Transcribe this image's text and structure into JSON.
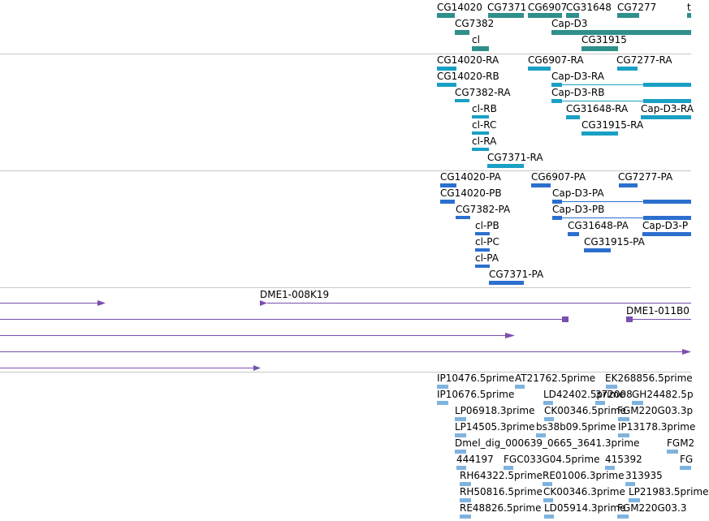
{
  "colors": {
    "gene": "#2f8f8a",
    "transcript": "#1aa0c4",
    "protein": "#2c6fcf",
    "clone": "#7a4fb0",
    "est": "#7fb3de",
    "divider": "#c8c8c8"
  },
  "tracks": [
    {
      "id": "genes",
      "color": "gene",
      "labels": [
        {
          "text": "CG14020"
        },
        {
          "text": "CG7371"
        },
        {
          "text": "CG6907"
        },
        {
          "text": "CG31648"
        },
        {
          "text": "CG7277"
        },
        {
          "text": "t"
        },
        {
          "text": "CG7382"
        },
        {
          "text": "Cap-D3"
        },
        {
          "text": "cl"
        },
        {
          "text": "CG31915"
        }
      ]
    },
    {
      "id": "transcripts",
      "color": "transcript",
      "labels": [
        {
          "text": "CG14020-RA"
        },
        {
          "text": "CG6907-RA"
        },
        {
          "text": "CG7277-RA"
        },
        {
          "text": "CG14020-RB"
        },
        {
          "text": "Cap-D3-RA"
        },
        {
          "text": "CG7382-RA"
        },
        {
          "text": "Cap-D3-RB"
        },
        {
          "text": "cl-RB"
        },
        {
          "text": "CG31648-RA"
        },
        {
          "text": "Cap-D3-RA"
        },
        {
          "text": "cl-RC"
        },
        {
          "text": "CG31915-RA"
        },
        {
          "text": "cl-RA"
        },
        {
          "text": "CG7371-RA"
        }
      ]
    },
    {
      "id": "proteins",
      "color": "protein",
      "labels": [
        {
          "text": "CG14020-PA"
        },
        {
          "text": "CG6907-PA"
        },
        {
          "text": "CG7277-PA"
        },
        {
          "text": "CG14020-PB"
        },
        {
          "text": "Cap-D3-PA"
        },
        {
          "text": "CG7382-PA"
        },
        {
          "text": "Cap-D3-PB"
        },
        {
          "text": "cl-PB"
        },
        {
          "text": "CG31648-PA"
        },
        {
          "text": "Cap-D3-P"
        },
        {
          "text": "cl-PC"
        },
        {
          "text": "CG31915-PA"
        },
        {
          "text": "cl-PA"
        },
        {
          "text": "CG7371-PA"
        }
      ]
    },
    {
      "id": "clones",
      "color": "clone",
      "labels": [
        {
          "text": "DME1-008K19"
        },
        {
          "text": "DME1-011B0"
        }
      ]
    },
    {
      "id": "ests",
      "color": "est",
      "labels": [
        {
          "text": "IP10476.5prime"
        },
        {
          "text": "AT21762.5prime"
        },
        {
          "text": "EK268856.5prime"
        },
        {
          "text": "IP10676.5prime"
        },
        {
          "text": "LD42402.5prime"
        },
        {
          "text": "372008"
        },
        {
          "text": "GH24482.5p"
        },
        {
          "text": "LP06918.3prime"
        },
        {
          "text": "CK00346.5prime"
        },
        {
          "text": "FGM220G03.3p"
        },
        {
          "text": "LP14505.3prime"
        },
        {
          "text": "bs38b09.5prime"
        },
        {
          "text": "IP13178.3prime"
        },
        {
          "text": "Dmel_dig_000639_0665_3641.3prime"
        },
        {
          "text": "FGM2"
        },
        {
          "text": "444197"
        },
        {
          "text": "FGC033G04.5prime"
        },
        {
          "text": "415392"
        },
        {
          "text": "FG"
        },
        {
          "text": "RH64322.5prime"
        },
        {
          "text": "RE01006.3prime"
        },
        {
          "text": "313935"
        },
        {
          "text": "RH50816.5prime"
        },
        {
          "text": "CK00346.3prime"
        },
        {
          "text": "LP21983.5prime"
        },
        {
          "text": "RE48826.5prime"
        },
        {
          "text": "LD05914.3prime"
        },
        {
          "text": "FGM220G03.3"
        }
      ]
    }
  ]
}
